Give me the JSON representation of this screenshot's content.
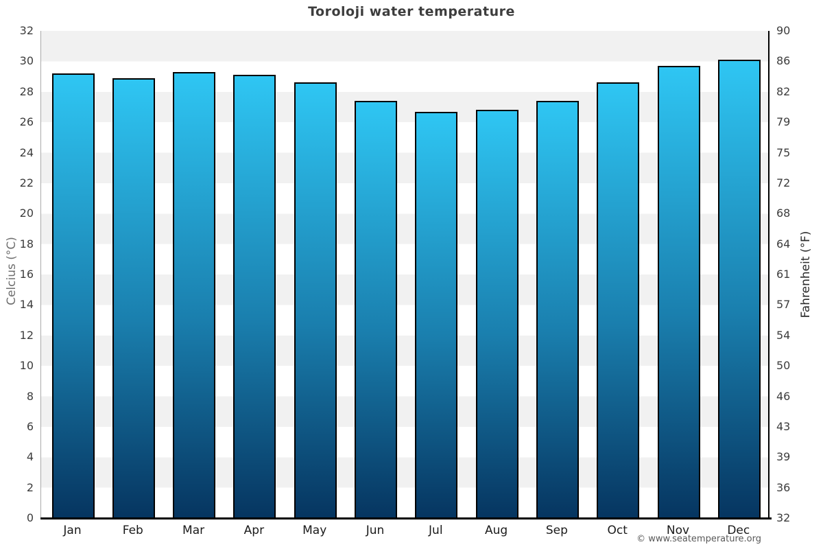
{
  "chart_data": {
    "type": "bar",
    "title": "Toroloji water temperature",
    "categories": [
      "Jan",
      "Feb",
      "Mar",
      "Apr",
      "May",
      "Jun",
      "Jul",
      "Aug",
      "Sep",
      "Oct",
      "Nov",
      "Dec"
    ],
    "values": [
      29.2,
      28.9,
      29.3,
      29.1,
      28.6,
      27.4,
      26.7,
      26.8,
      27.4,
      28.6,
      29.7,
      30.1
    ],
    "unit": "°C",
    "ylabel_left": "Celcius (°C)",
    "ylabel_right": "Fahrenheit (°F)",
    "ylim": [
      0,
      32
    ],
    "yticks_celsius": [
      0,
      2,
      4,
      6,
      8,
      10,
      12,
      14,
      16,
      18,
      20,
      22,
      24,
      26,
      28,
      30,
      32
    ],
    "yticks_fahrenheit": [
      32,
      36,
      39,
      43,
      46,
      50,
      54,
      57,
      61,
      64,
      68,
      72,
      75,
      79,
      82,
      86,
      90
    ],
    "grid": "alternating horizontal bands",
    "legend": "none",
    "colors": {
      "bar_gradient_top": "#2fc6f3",
      "bar_gradient_bottom": "#063560",
      "bar_border": "#000000",
      "band_gray": "#f1f1f1",
      "band_white": "#ffffff",
      "title_text": "#3d3d3d",
      "tick_text": "#3c3c3c",
      "left_axis_title_text": "#6e6e6e",
      "right_axis_title_text": "#2a2a2a"
    }
  },
  "footer": {
    "copyright": "© www.seatemperature.org"
  }
}
